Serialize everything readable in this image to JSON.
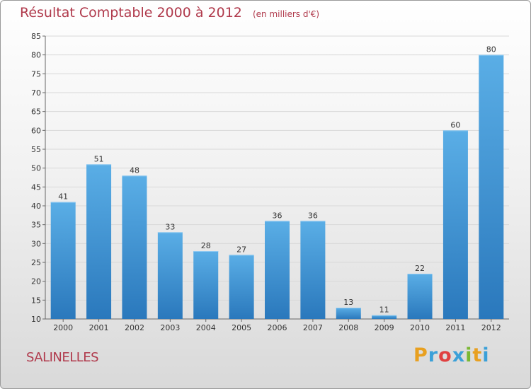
{
  "chart_data": {
    "type": "bar",
    "title": "Résultat Comptable 2000 à 2012",
    "subtitle": "(en milliers d'€)",
    "categories": [
      "2000",
      "2001",
      "2002",
      "2003",
      "2004",
      "2005",
      "2006",
      "2007",
      "2008",
      "2009",
      "2010",
      "2011",
      "2012"
    ],
    "values": [
      41,
      51,
      48,
      33,
      28,
      27,
      36,
      36,
      13,
      11,
      22,
      60,
      80
    ],
    "ylim": [
      10,
      85
    ],
    "yticks": [
      10,
      15,
      20,
      25,
      30,
      35,
      40,
      45,
      50,
      55,
      60,
      65,
      70,
      75,
      80,
      85
    ],
    "grid": true,
    "bar_color": "#3d8fd1",
    "xlabel": "",
    "ylabel": ""
  },
  "commune": "SALINELLES",
  "logo": {
    "letters": [
      "P",
      "r",
      "o",
      "x",
      "i",
      "t",
      "i"
    ],
    "colors": [
      "#e8a020",
      "#3aa0d8",
      "#e04040",
      "#3aa0d8",
      "#7ab833",
      "#e8a020",
      "#3aa0d8"
    ]
  }
}
